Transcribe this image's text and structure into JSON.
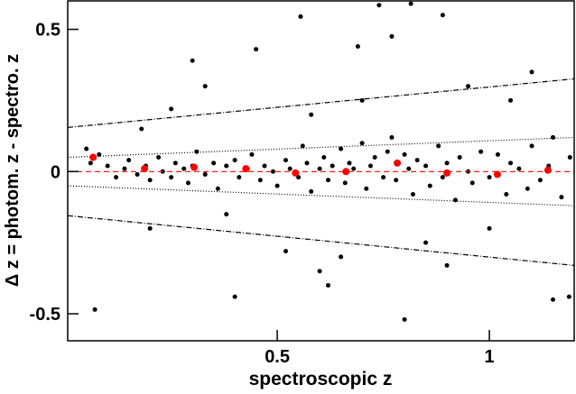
{
  "chart_data": {
    "type": "scatter",
    "x_label": "spectroscopic z",
    "y_label": "Δ z = photom. z - spectro. z",
    "xlim": [
      0.006,
      1.2
    ],
    "ylim": [
      -0.595,
      0.6
    ],
    "xticks": [
      0.5,
      1
    ],
    "yticks": [
      -0.5,
      0,
      0.5
    ],
    "series": [
      {
        "kind": "points",
        "color": "#000000",
        "radius": 2.5,
        "x": [
          0.05,
          0.06,
          0.08,
          0.1,
          0.12,
          0.14,
          0.15,
          0.17,
          0.19,
          0.2,
          0.22,
          0.23,
          0.25,
          0.26,
          0.28,
          0.29,
          0.3,
          0.31,
          0.33,
          0.35,
          0.36,
          0.38,
          0.4,
          0.41,
          0.43,
          0.44,
          0.46,
          0.47,
          0.49,
          0.5,
          0.52,
          0.53,
          0.55,
          0.56,
          0.57,
          0.58,
          0.6,
          0.61,
          0.62,
          0.63,
          0.65,
          0.66,
          0.67,
          0.68,
          0.7,
          0.71,
          0.72,
          0.73,
          0.75,
          0.76,
          0.77,
          0.78,
          0.8,
          0.81,
          0.82,
          0.83,
          0.85,
          0.86,
          0.88,
          0.89,
          0.9,
          0.92,
          0.93,
          0.95,
          0.96,
          0.98,
          1.0,
          1.02,
          1.04,
          1.05,
          1.07,
          1.09,
          1.1,
          1.12,
          1.14,
          1.15,
          1.17,
          1.19,
          0.815,
          0.74,
          0.555,
          0.89,
          0.3,
          0.77,
          0.69,
          0.4,
          0.07,
          0.8,
          1.188,
          0.33,
          0.45,
          0.6,
          0.65,
          0.95,
          1.05,
          0.2,
          0.25,
          0.52,
          0.7,
          0.85,
          1.1,
          0.18,
          0.62,
          0.9,
          1.15,
          0.38,
          0.58,
          1.0
        ],
        "values": [
          0.08,
          0.03,
          0.06,
          0.02,
          -0.02,
          0.01,
          0.04,
          -0.01,
          0.02,
          -0.03,
          0.05,
          0,
          -0.02,
          0.03,
          0.01,
          -0.04,
          0.02,
          0.07,
          -0.01,
          0.03,
          -0.06,
          0.02,
          0.04,
          -0.02,
          0.01,
          0.06,
          -0.03,
          0.02,
          0,
          -0.05,
          0.04,
          0.01,
          -0.02,
          0.09,
          0.03,
          -0.07,
          0.01,
          0.05,
          -0.03,
          0.02,
          0.08,
          -0.04,
          0.03,
          0.01,
          0.1,
          -0.06,
          0.02,
          0.05,
          -0.02,
          0.07,
          0.12,
          -0.03,
          0.06,
          0.01,
          -0.08,
          0.04,
          0.02,
          -0.05,
          0.09,
          -0.02,
          0.03,
          -0.1,
          0.05,
          0,
          -0.04,
          0.07,
          -0.02,
          0.06,
          -0.08,
          0.03,
          0.01,
          -0.06,
          0.09,
          -0.03,
          0.02,
          0.12,
          -0.09,
          0.05,
          0.59,
          0.585,
          0.545,
          0.55,
          0.39,
          0.475,
          0.44,
          -0.44,
          -0.485,
          -0.52,
          -0.44,
          0.3,
          0.43,
          -0.35,
          -0.3,
          0.3,
          0.25,
          -0.2,
          0.22,
          -0.28,
          0.25,
          -0.25,
          0.35,
          0.15,
          -0.4,
          -0.33,
          -0.45,
          -0.15,
          0.2,
          -0.2
        ]
      },
      {
        "kind": "line",
        "color": "#ff0000",
        "dash": "6 4",
        "x": [
          0.006,
          1.2
        ],
        "values": [
          0,
          0
        ]
      },
      {
        "kind": "line",
        "color": "#000000",
        "dash": "1 2",
        "x": [
          0.006,
          1.2
        ],
        "values": [
          0.05,
          0.12
        ]
      },
      {
        "kind": "line",
        "color": "#000000",
        "dash": "1 2",
        "x": [
          0.006,
          1.2
        ],
        "values": [
          -0.05,
          -0.12
        ]
      },
      {
        "kind": "line",
        "color": "#000000",
        "dash": "6 2 1 2",
        "x": [
          0.006,
          1.2
        ],
        "values": [
          0.155,
          0.326
        ]
      },
      {
        "kind": "line",
        "color": "#000000",
        "dash": "6 2 1 2",
        "x": [
          0.006,
          1.2
        ],
        "values": [
          -0.155,
          -0.33
        ]
      },
      {
        "kind": "points",
        "color": "#ff0000",
        "radius": 4,
        "x": [
          0.066,
          0.187,
          0.304,
          0.426,
          0.543,
          0.662,
          0.783,
          0.9,
          1.019,
          1.138
        ],
        "values": [
          0.05,
          0.01,
          0.015,
          0.01,
          -0.005,
          0,
          0.03,
          -0.005,
          -0.01,
          0.005
        ]
      }
    ]
  }
}
